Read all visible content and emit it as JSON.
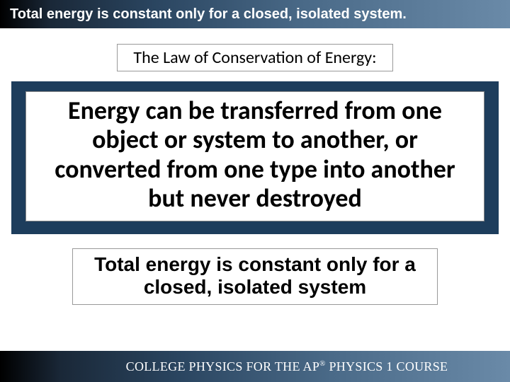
{
  "header": {
    "text": "Total energy is constant only for a closed, isolated system.",
    "fontsize": 20,
    "color": "#ffffff",
    "gradient_start": "#000000",
    "gradient_end": "#6a8aa8"
  },
  "subtitle": {
    "text": "The Law of Conservation of Energy:",
    "fontsize": 24,
    "color": "#000000",
    "background": "#ffffff",
    "border_color": "#999999"
  },
  "main": {
    "text": "Energy can be transferred from one object or system to another, or converted from one type into another but never destroyed",
    "fontsize": 36,
    "color": "#000000",
    "inner_background": "#ffffff",
    "outer_background": "#1d3d5c"
  },
  "bottom": {
    "line1": "Total energy is constant only for a",
    "line2": "closed, isolated system",
    "fontsize": 28,
    "color": "#000000",
    "background": "#ffffff",
    "border_color": "#999999"
  },
  "footer": {
    "prefix": "COLLEGE PHYSICS FOR THE AP",
    "superscript": "®",
    "suffix": " PHYSICS 1 COURSE",
    "fontsize": 18,
    "color": "#ffffff",
    "gradient_start": "#000000",
    "gradient_end": "#6a8aa8"
  }
}
